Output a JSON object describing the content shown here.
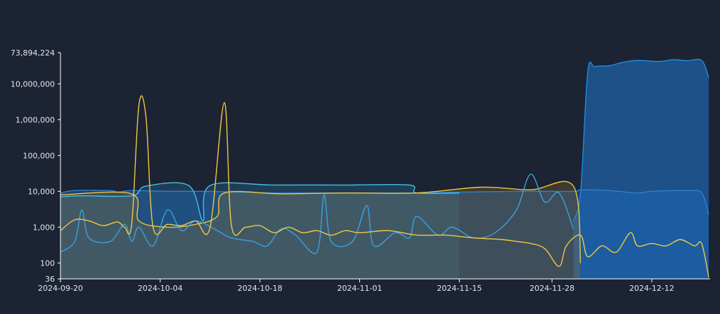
{
  "chart_data": {
    "type": "area",
    "y_scale": "log",
    "ylim": [
      36,
      73894224
    ],
    "xlim": [
      "2024-09-20",
      "2024-12-20"
    ],
    "grid": false,
    "legend": "none",
    "x_ticks": [
      "2024-09-20",
      "2024-10-04",
      "2024-10-18",
      "2024-11-01",
      "2024-11-15",
      "2024-11-28",
      "2024-12-12"
    ],
    "y_ticks": [
      {
        "value": 36,
        "label": "36"
      },
      {
        "value": 100,
        "label": "100"
      },
      {
        "value": 1000,
        "label": "1,000"
      },
      {
        "value": 10000,
        "label": "10,000"
      },
      {
        "value": 100000,
        "label": "100,000"
      },
      {
        "value": 1000000,
        "label": "1,000,000"
      },
      {
        "value": 10000000,
        "label": "10,000,000"
      },
      {
        "value": 73894224,
        "label": "73,894,224"
      }
    ],
    "series": [
      {
        "color": "#2d7fd0",
        "fill": "#1c5aa8",
        "fill_opacity": 0.55,
        "points": [
          [
            "2024-09-20",
            9000
          ],
          [
            "2024-09-22",
            10500
          ],
          [
            "2024-09-27",
            10500
          ],
          [
            "2024-09-28",
            9500
          ],
          [
            "2024-09-30",
            10500
          ],
          [
            "2024-10-05",
            10000
          ],
          [
            "2024-10-10",
            10000
          ],
          [
            "2024-10-15",
            9500
          ],
          [
            "2024-10-20",
            9000
          ],
          [
            "2024-10-25",
            9000
          ],
          [
            "2024-11-01",
            9000
          ],
          [
            "2024-11-09",
            9000
          ],
          [
            "2024-11-15",
            9500
          ],
          [
            "2024-11-24",
            10000
          ],
          [
            "2024-12-01",
            10000
          ],
          [
            "2024-12-02",
            11000
          ],
          [
            "2024-12-06",
            10500
          ],
          [
            "2024-12-10",
            9000
          ],
          [
            "2024-12-12",
            10000
          ],
          [
            "2024-12-17",
            10500
          ],
          [
            "2024-12-19",
            9000
          ],
          [
            "2024-12-20",
            2200
          ]
        ]
      },
      {
        "color": "#1e8ee0",
        "fill": "#1e6fc0",
        "fill_opacity": 0.6,
        "points": [
          [
            "2024-12-01",
            1500
          ],
          [
            "2024-12-02",
            9000
          ],
          [
            "2024-12-03",
            20000000
          ],
          [
            "2024-12-04",
            30000000
          ],
          [
            "2024-12-06",
            32000000
          ],
          [
            "2024-12-08",
            40000000
          ],
          [
            "2024-12-10",
            45000000
          ],
          [
            "2024-12-13",
            42000000
          ],
          [
            "2024-12-15",
            47000000
          ],
          [
            "2024-12-17",
            44000000
          ],
          [
            "2024-12-19",
            45000000
          ],
          [
            "2024-12-20",
            15000000
          ]
        ]
      },
      {
        "color": "#3ec0e8",
        "fill": "#2a6f9a",
        "fill_opacity": 0.35,
        "points": [
          [
            "2024-09-20",
            7000
          ],
          [
            "2024-09-23",
            7500
          ],
          [
            "2024-09-30",
            7500
          ],
          [
            "2024-10-02",
            14000
          ],
          [
            "2024-10-08",
            14500
          ],
          [
            "2024-10-10",
            1500
          ],
          [
            "2024-10-11",
            14500
          ],
          [
            "2024-10-20",
            15000
          ],
          [
            "2024-10-30",
            15000
          ],
          [
            "2024-11-08",
            15000
          ],
          [
            "2024-11-09",
            9000
          ],
          [
            "2024-11-15",
            9000
          ]
        ]
      },
      {
        "color": "#f0c53a",
        "fill": "#8a6d2a",
        "fill_opacity": 0.32,
        "points": [
          [
            "2024-09-20",
            8000
          ],
          [
            "2024-09-30",
            8500
          ],
          [
            "2024-10-01",
            1500
          ],
          [
            "2024-10-05",
            1000
          ],
          [
            "2024-10-09",
            1200
          ],
          [
            "2024-10-12",
            2000
          ],
          [
            "2024-10-13",
            9000
          ],
          [
            "2024-10-21",
            8500
          ],
          [
            "2024-10-30",
            9000
          ],
          [
            "2024-11-09",
            9000
          ],
          [
            "2024-11-18",
            13000
          ],
          [
            "2024-11-25",
            11000
          ],
          [
            "2024-12-01",
            14000
          ],
          [
            "2024-12-02",
            100
          ]
        ]
      },
      {
        "color": "#3aa2e0",
        "fill": "#2a4f70",
        "fill_opacity": 0.0,
        "points": [
          [
            "2024-09-20",
            200
          ],
          [
            "2024-09-22",
            400
          ],
          [
            "2024-09-23",
            3000
          ],
          [
            "2024-09-24",
            500
          ],
          [
            "2024-09-27",
            400
          ],
          [
            "2024-09-29",
            1200
          ],
          [
            "2024-09-30",
            400
          ],
          [
            "2024-10-01",
            1000
          ],
          [
            "2024-10-03",
            300
          ],
          [
            "2024-10-05",
            3000
          ],
          [
            "2024-10-07",
            800
          ],
          [
            "2024-10-09",
            1500
          ],
          [
            "2024-10-12",
            800
          ],
          [
            "2024-10-14",
            500
          ],
          [
            "2024-10-17",
            400
          ],
          [
            "2024-10-19",
            300
          ],
          [
            "2024-10-21",
            900
          ],
          [
            "2024-10-23",
            600
          ],
          [
            "2024-10-26",
            200
          ],
          [
            "2024-10-27",
            8000
          ],
          [
            "2024-10-28",
            400
          ],
          [
            "2024-10-31",
            400
          ],
          [
            "2024-11-02",
            4000
          ],
          [
            "2024-11-03",
            300
          ],
          [
            "2024-11-06",
            700
          ],
          [
            "2024-11-08",
            500
          ],
          [
            "2024-11-09",
            2000
          ],
          [
            "2024-11-12",
            600
          ],
          [
            "2024-11-14",
            1000
          ],
          [
            "2024-11-17",
            500
          ],
          [
            "2024-11-20",
            700
          ],
          [
            "2024-11-23",
            3000
          ],
          [
            "2024-11-25",
            30000
          ],
          [
            "2024-11-27",
            5000
          ],
          [
            "2024-11-29",
            9000
          ],
          [
            "2024-12-01",
            900
          ]
        ]
      },
      {
        "color": "#f2c843",
        "fill": "#000000",
        "fill_opacity": 0.0,
        "points": [
          [
            "2024-09-20",
            800
          ],
          [
            "2024-09-22",
            1600
          ],
          [
            "2024-09-24",
            1500
          ],
          [
            "2024-09-26",
            1100
          ],
          [
            "2024-09-28",
            1400
          ],
          [
            "2024-09-29",
            1000
          ],
          [
            "2024-09-30",
            1200
          ],
          [
            "2024-10-01",
            2500000
          ],
          [
            "2024-10-02",
            1200000
          ],
          [
            "2024-10-03",
            1000
          ],
          [
            "2024-10-05",
            1200
          ],
          [
            "2024-10-07",
            1100
          ],
          [
            "2024-10-09",
            1500
          ],
          [
            "2024-10-11",
            1000
          ],
          [
            "2024-10-13",
            3000000
          ],
          [
            "2024-10-14",
            1100
          ],
          [
            "2024-10-16",
            1000
          ],
          [
            "2024-10-18",
            1100
          ],
          [
            "2024-10-20",
            700
          ],
          [
            "2024-10-22",
            1000
          ],
          [
            "2024-10-24",
            700
          ],
          [
            "2024-10-26",
            800
          ],
          [
            "2024-10-28",
            600
          ],
          [
            "2024-10-30",
            800
          ],
          [
            "2024-11-01",
            700
          ],
          [
            "2024-11-05",
            800
          ],
          [
            "2024-11-09",
            600
          ],
          [
            "2024-11-13",
            600
          ],
          [
            "2024-11-17",
            500
          ],
          [
            "2024-11-21",
            450
          ],
          [
            "2024-11-23",
            400
          ],
          [
            "2024-11-25",
            350
          ],
          [
            "2024-11-27",
            250
          ],
          [
            "2024-11-29",
            80
          ],
          [
            "2024-11-30",
            300
          ],
          [
            "2024-12-02",
            600
          ],
          [
            "2024-12-03",
            150
          ],
          [
            "2024-12-05",
            300
          ],
          [
            "2024-12-07",
            200
          ],
          [
            "2024-12-09",
            700
          ],
          [
            "2024-12-10",
            300
          ],
          [
            "2024-12-12",
            350
          ],
          [
            "2024-12-14",
            300
          ],
          [
            "2024-12-16",
            450
          ],
          [
            "2024-12-18",
            300
          ],
          [
            "2024-12-19",
            350
          ],
          [
            "2024-12-20",
            40
          ]
        ]
      }
    ]
  }
}
